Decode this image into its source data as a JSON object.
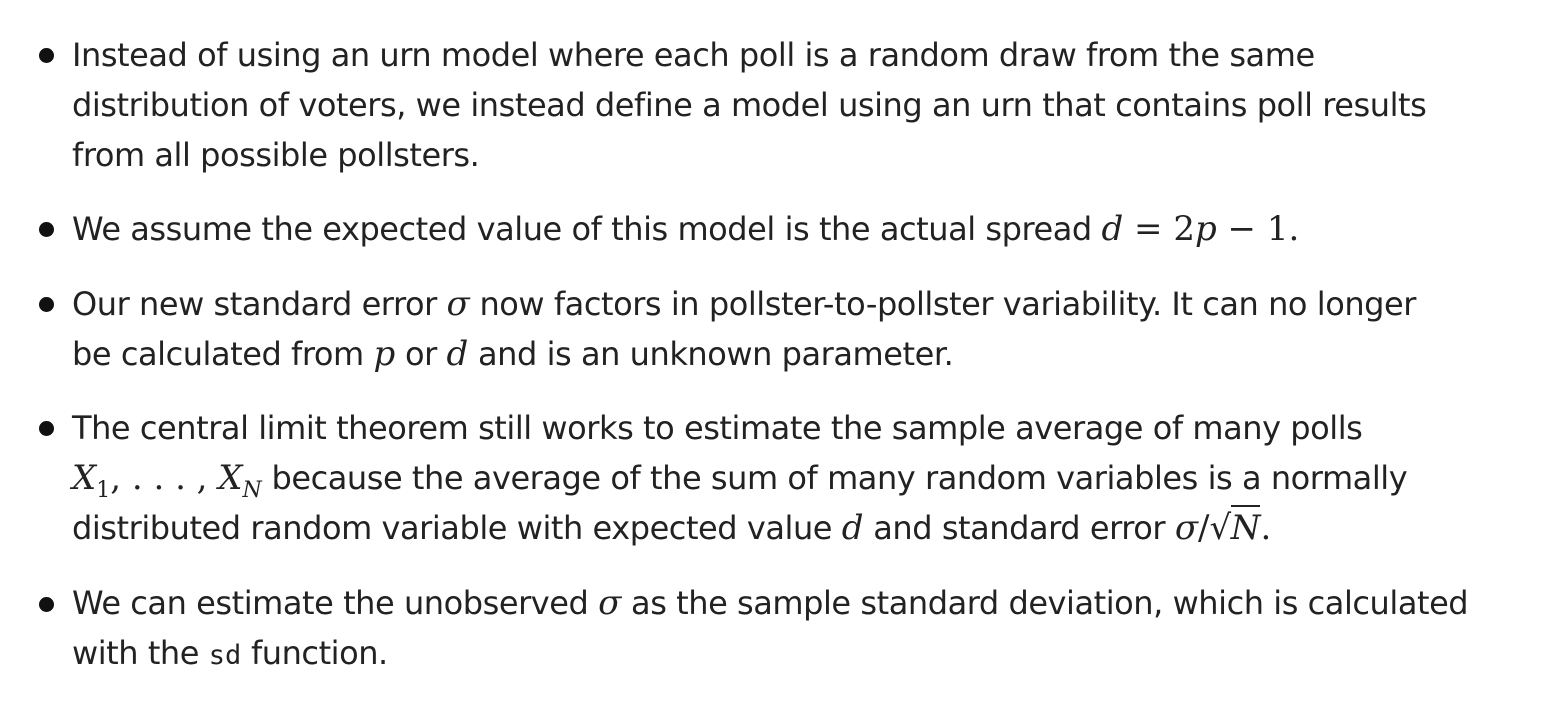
{
  "bullets": [
    {
      "lines": [
        "Instead of using an urn model where each poll is a random draw from the same",
        "distribution of voters, we instead define a model using an urn that contains poll results",
        "from all possible pollsters."
      ]
    },
    {
      "text_before": "We assume the expected value of this model is the actual spread ",
      "math": {
        "d": "d",
        "eq": " = 2",
        "p": "p",
        "rest": " − 1."
      }
    },
    {
      "line1_a": "Our new standard error ",
      "sigma": "σ",
      "line1_b": " now factors in pollster-to-pollster variability. It can no longer",
      "line2_a": "be calculated from ",
      "p": "p",
      "line2_b": " or ",
      "d": "d",
      "line2_c": " and is an unknown parameter."
    },
    {
      "line1": "The central limit theorem still works to estimate the sample average of many polls",
      "x1": "X",
      "x1_sub": "1",
      "dots": ", . . . , ",
      "xn": "X",
      "xn_sub": "N",
      "line2_b": " because the average of the sum of many random variables is a normally",
      "line3_a": "distributed random variable with expected value ",
      "d": "d",
      "line3_b": " and standard error ",
      "sigma": "σ",
      "slash": "/",
      "sqrt": "√",
      "n": "N",
      "period": "."
    },
    {
      "line1_a": "We can estimate the unobserved ",
      "sigma": "σ",
      "line1_b": " as the sample standard deviation, which is calculated",
      "line2_a": "with the ",
      "code": "sd",
      "line2_b": " function."
    }
  ]
}
